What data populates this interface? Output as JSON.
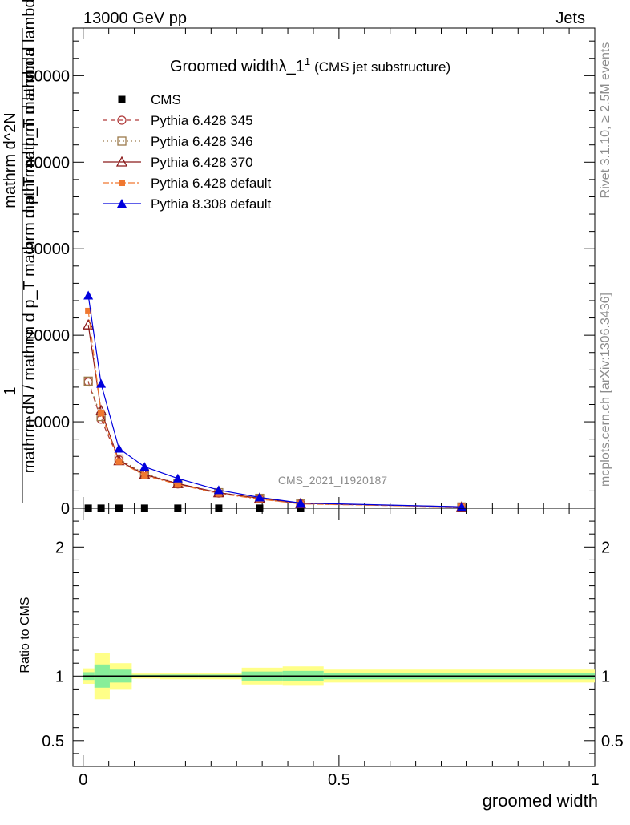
{
  "header": {
    "left": "13000 GeV pp",
    "right": "Jets"
  },
  "side_labels": {
    "rivet": "Rivet 3.1.10, ≥ 2.5M events",
    "mcplots": "mcplots.cern.ch [arXiv:1306.3436]"
  },
  "watermark": "CMS_2021_I1920187",
  "chart_data": [
    {
      "type": "line",
      "title": "Groomed width",
      "title_symbol": "λ_1",
      "title_sup": "1",
      "subtitle": "(CMS jet substructure)",
      "ylabel_num": "1",
      "ylabel_den": "mathrm dN / mathrm d p_T mathrm d p_T mathrm d lambda",
      "ylabel_frac_num": "mathrm d^2N",
      "ylabel_frac_den": "mathrm d p_T mathrm d lambda",
      "xlim": [
        -0.02,
        1.0
      ],
      "ylim": [
        0,
        55500
      ],
      "y_ticks": [
        "0",
        "10000",
        "20000",
        "30000",
        "40000",
        "50000"
      ],
      "x": [
        0.01,
        0.035,
        0.07,
        0.12,
        0.185,
        0.265,
        0.345,
        0.425,
        0.74
      ],
      "series": [
        {
          "name": "CMS",
          "color": "#000000",
          "marker": "square",
          "dash": "none",
          "values": [
            10,
            10,
            10,
            10,
            10,
            10,
            10,
            10,
            10
          ]
        },
        {
          "name": "Pythia 6.428 345",
          "color": "#b03a3a",
          "marker": "circle-open",
          "dash": "6,4",
          "values": [
            14600,
            10300,
            5600,
            3900,
            2800,
            1750,
            1100,
            520,
            150
          ]
        },
        {
          "name": "Pythia 6.428 346",
          "color": "#9c7a4a",
          "marker": "square-open",
          "dash": "2,3",
          "values": [
            14700,
            10600,
            5700,
            4000,
            2850,
            1800,
            1150,
            540,
            150
          ]
        },
        {
          "name": "Pythia 6.428 370",
          "color": "#8b1a1a",
          "marker": "triangle-open",
          "dash": "none",
          "values": [
            21200,
            11300,
            5500,
            3900,
            2850,
            1800,
            1150,
            560,
            160
          ]
        },
        {
          "name": "Pythia 6.428 default",
          "color": "#f07830",
          "marker": "square-filled",
          "dash": "8,3,2,3",
          "values": [
            22800,
            11000,
            5400,
            3800,
            2750,
            1700,
            1050,
            500,
            140
          ]
        },
        {
          "name": "Pythia 8.308 default",
          "color": "#0000dd",
          "marker": "triangle-filled",
          "dash": "none",
          "values": [
            24600,
            14400,
            6900,
            4800,
            3450,
            2100,
            1250,
            600,
            170
          ]
        }
      ]
    },
    {
      "type": "area",
      "ylabel": "Ratio to CMS",
      "xlabel": "groomed width",
      "xlim": [
        -0.02,
        1.0
      ],
      "ylim": [
        0.3,
        2.3
      ],
      "y_ticks": [
        "0.5",
        "1",
        "2"
      ],
      "x_ticks": [
        "0",
        "0.5",
        "1"
      ],
      "bins": [
        {
          "lo": 0.0,
          "hi": 0.022,
          "stat": 0.03,
          "total": 0.06
        },
        {
          "lo": 0.022,
          "hi": 0.052,
          "stat": 0.09,
          "total": 0.18
        },
        {
          "lo": 0.052,
          "hi": 0.095,
          "stat": 0.05,
          "total": 0.1
        },
        {
          "lo": 0.095,
          "hi": 0.15,
          "stat": 0.01,
          "total": 0.02
        },
        {
          "lo": 0.15,
          "hi": 0.225,
          "stat": 0.012,
          "total": 0.025
        },
        {
          "lo": 0.225,
          "hi": 0.31,
          "stat": 0.012,
          "total": 0.025
        },
        {
          "lo": 0.31,
          "hi": 0.39,
          "stat": 0.035,
          "total": 0.065
        },
        {
          "lo": 0.39,
          "hi": 0.47,
          "stat": 0.04,
          "total": 0.075
        },
        {
          "lo": 0.47,
          "hi": 1.0,
          "stat": 0.025,
          "total": 0.05
        }
      ]
    }
  ]
}
